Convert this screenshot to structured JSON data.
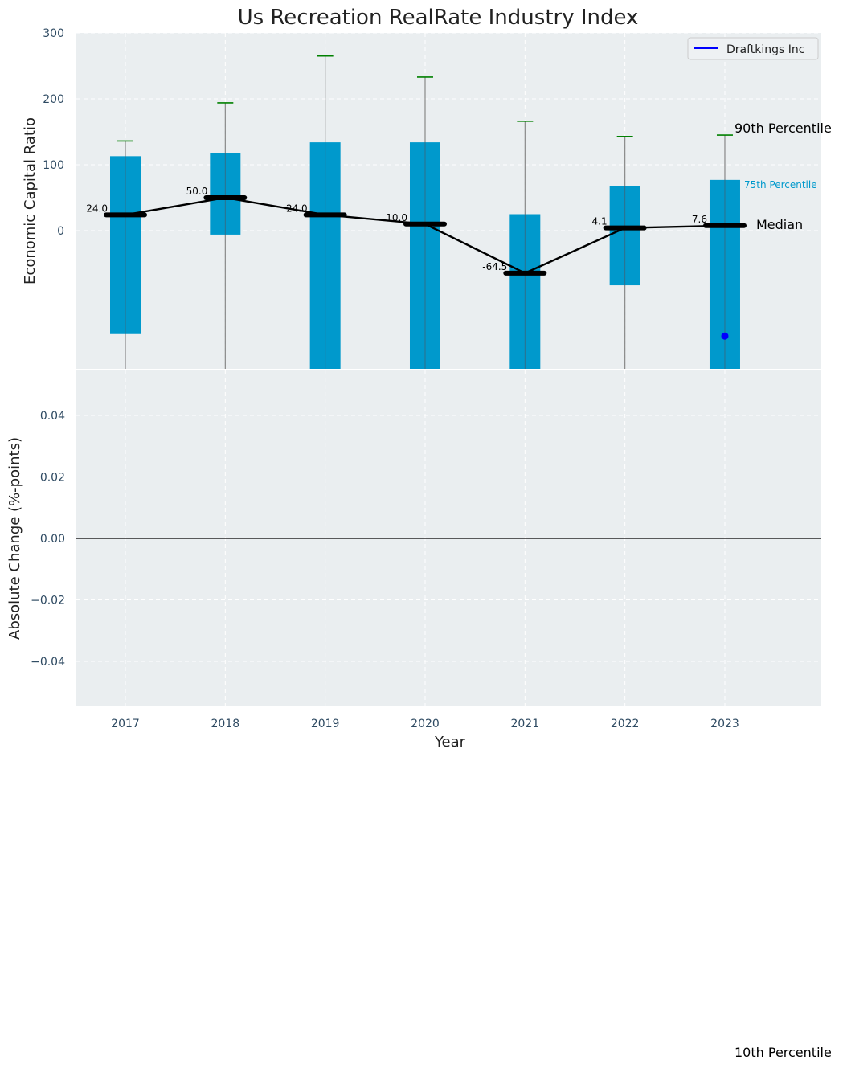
{
  "chart_data": [
    {
      "type": "box",
      "title": "Us Recreation RealRate Industry Index",
      "ylabel": "Economic Capital Ratio",
      "ylim": [
        -210,
        300
      ],
      "yticks": [
        "300",
        "200",
        "100",
        "0"
      ],
      "ytick_values": [
        300,
        200,
        100,
        0
      ],
      "categories": [
        "2017",
        "2018",
        "2019",
        "2020",
        "2021",
        "2022",
        "2023"
      ],
      "boxes": [
        {
          "year": "2017",
          "p90": 136,
          "p75": 113,
          "median": 24.0,
          "p25": -157,
          "p10": -210
        },
        {
          "year": "2018",
          "p90": 194,
          "p75": 118,
          "median": 50.0,
          "p25": -6,
          "p10": -210
        },
        {
          "year": "2019",
          "p90": 265,
          "p75": 134,
          "median": 24.0,
          "p25": -210,
          "p10": -210
        },
        {
          "year": "2020",
          "p90": 233,
          "p75": 134,
          "median": 10.0,
          "p25": -210,
          "p10": -210
        },
        {
          "year": "2021",
          "p90": 166,
          "p75": 25,
          "median": -64.5,
          "p25": -210,
          "p10": -210
        },
        {
          "year": "2022",
          "p90": 143,
          "p75": 68,
          "median": 4.1,
          "p25": -83,
          "p10": -210
        },
        {
          "year": "2023",
          "p90": 145,
          "p75": 77,
          "median": 7.6,
          "p25": -210,
          "p10": -210
        }
      ],
      "median_labels": [
        "24.0",
        "50.0",
        "24.0",
        "10.0",
        "-64.5",
        "4.1",
        "7.6"
      ],
      "series": [
        {
          "name": "Draftkings Inc",
          "points": [
            {
              "x": "2023",
              "y": -160
            }
          ],
          "color": "#0000ff"
        }
      ],
      "annotations": {
        "p90": "90th Percentile",
        "p75": "75th Percentile",
        "median": "Median",
        "p10": "10th Percentile"
      },
      "legend": {
        "position": "top-right",
        "label": "Draftkings Inc"
      },
      "grid": true
    },
    {
      "type": "line",
      "ylabel": "Absolute Change (%-points)",
      "xlabel": "Year",
      "ylim": [
        -0.055,
        0.055
      ],
      "yticks": [
        "0.04",
        "0.02",
        "0.00",
        "−0.02",
        "−0.04"
      ],
      "ytick_values": [
        0.04,
        0.02,
        0.0,
        -0.02,
        -0.04
      ],
      "categories": [
        "2017",
        "2018",
        "2019",
        "2020",
        "2021",
        "2022",
        "2023"
      ],
      "zero_line": 0.0,
      "grid": true
    }
  ],
  "colors": {
    "box": "#0099cc",
    "panel_bg": "#eaeef0",
    "whisker_cap": "#008000",
    "median": "#000000",
    "company": "#0000ff",
    "p75_label": "#0099cc"
  }
}
